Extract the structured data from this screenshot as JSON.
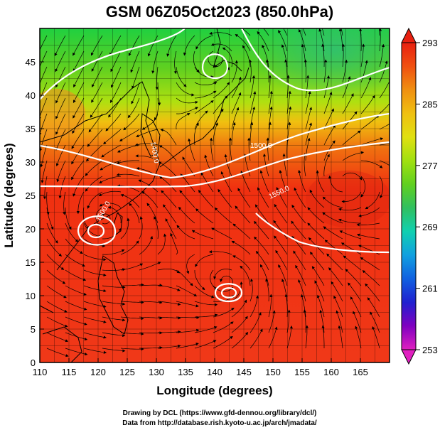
{
  "figure": {
    "title": "GSM 06Z05Oct2023 (850.0hPa)",
    "credit_line1": "Drawing by DCL (https://www.gfd-dennou.org/library/dcl/)",
    "credit_line2": "Data from http://database.rish.kyoto-u.ac.jp/arch/jmadata/"
  },
  "chart_data": {
    "type": "heatmap",
    "xlabel": "Longitude (degrees)",
    "ylabel": "Latitude  (degrees)",
    "xlim": [
      110,
      170
    ],
    "ylim": [
      0,
      50
    ],
    "x_ticks": [
      "110",
      "115",
      "120",
      "125",
      "130",
      "135",
      "140",
      "145",
      "150",
      "155",
      "160",
      "165"
    ],
    "y_ticks": [
      "0",
      "5",
      "10",
      "15",
      "20",
      "25",
      "30",
      "35",
      "40",
      "45"
    ],
    "grid": true,
    "colorbar": {
      "min": 253,
      "max": 293,
      "ticks": [
        "293",
        "285",
        "277",
        "269",
        "261",
        "253"
      ],
      "colors": [
        "#e020c0",
        "#8000c0",
        "#2020d0",
        "#1060e0",
        "#10a0e0",
        "#10d0b0",
        "#30c060",
        "#60d020",
        "#a0e010",
        "#e0e010",
        "#f0c010",
        "#f09010",
        "#f05010",
        "#e82010"
      ]
    },
    "contours": {
      "labels": [
        "1500.0",
        "1550.0",
        "1500.0",
        "1400.0"
      ]
    },
    "features": {
      "low_pressure_centers": [
        {
          "lon": 121.0,
          "lat": 21.5
        },
        {
          "lon": 142.5,
          "lat": 12.0
        },
        {
          "lon": 140.5,
          "lat": 45.5
        }
      ],
      "high_pressure_centers": [
        {
          "lon": 162.0,
          "lat": 27.0
        }
      ]
    }
  }
}
